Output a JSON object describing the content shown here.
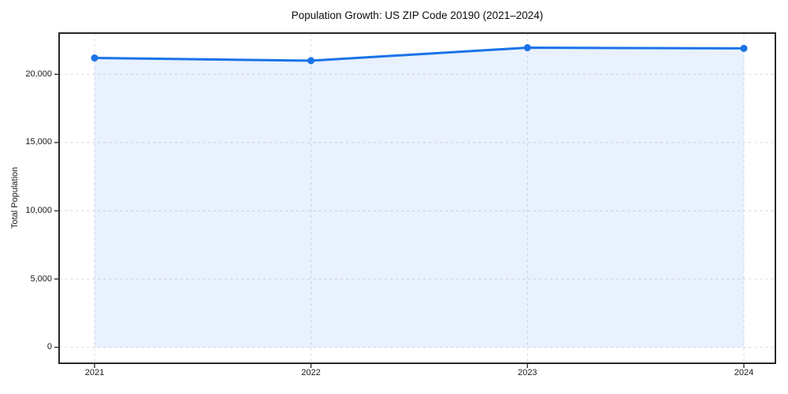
{
  "chart_data": {
    "type": "area",
    "title": "Population Growth: US ZIP Code 20190 (2021–2024)",
    "xlabel": "",
    "ylabel": "Total Population",
    "x": [
      "2021",
      "2022",
      "2023",
      "2024"
    ],
    "values": [
      21200,
      21000,
      21950,
      21900
    ],
    "y_ticks": [
      0,
      5000,
      10000,
      15000,
      20000
    ],
    "y_tick_labels": [
      "0",
      "5,000",
      "10,000",
      "15,000",
      "20,000"
    ],
    "ylim": [
      0,
      23000
    ],
    "grid": true,
    "legend": "none",
    "line_color": "#1a73e8",
    "marker_color": "#1a73e8",
    "fill_color": "rgba(26,115,232,0.10)",
    "frame_color": "#111111"
  }
}
